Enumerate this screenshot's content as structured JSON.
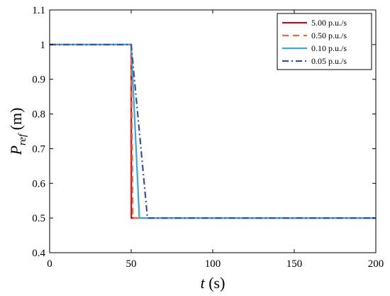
{
  "chart_data": {
    "type": "line",
    "xlabel": "t (s)",
    "ylabel": "P_ref (m)",
    "xlim": [
      0,
      200
    ],
    "ylim": [
      0.4,
      1.1
    ],
    "xticks": [
      0,
      50,
      100,
      150,
      200
    ],
    "yticks": [
      0.4,
      0.5,
      0.6,
      0.7,
      0.8,
      0.9,
      1.0,
      1.1
    ],
    "xtick_labels": [
      "0",
      "50",
      "100",
      "150",
      "200"
    ],
    "ytick_labels": [
      "0.4",
      "0.5",
      "0.6",
      "0.7",
      "0.8",
      "0.9",
      "1",
      "1.1"
    ],
    "grid": false,
    "legend_position": "top-right",
    "series": [
      {
        "name": "5.00 p.u./s",
        "color": "#c0121e",
        "dash": "solid",
        "x": [
          0,
          50,
          50.1,
          200
        ],
        "y": [
          1.0,
          1.0,
          0.5,
          0.5
        ]
      },
      {
        "name": "0.50 p.u./s",
        "color": "#ee6a3a",
        "dash": "dash",
        "x": [
          0,
          50,
          51,
          200
        ],
        "y": [
          1.0,
          1.0,
          0.5,
          0.5
        ]
      },
      {
        "name": "0.10 p.u./s",
        "color": "#3ba7d6",
        "dash": "solid",
        "x": [
          0,
          50,
          55,
          200
        ],
        "y": [
          1.0,
          1.0,
          0.5,
          0.5
        ]
      },
      {
        "name": "0.05 p.u./s",
        "color": "#3b4ea1",
        "dash": "dashdot",
        "x": [
          0,
          50,
          60,
          200
        ],
        "y": [
          1.0,
          1.0,
          0.5,
          0.5
        ]
      }
    ]
  }
}
